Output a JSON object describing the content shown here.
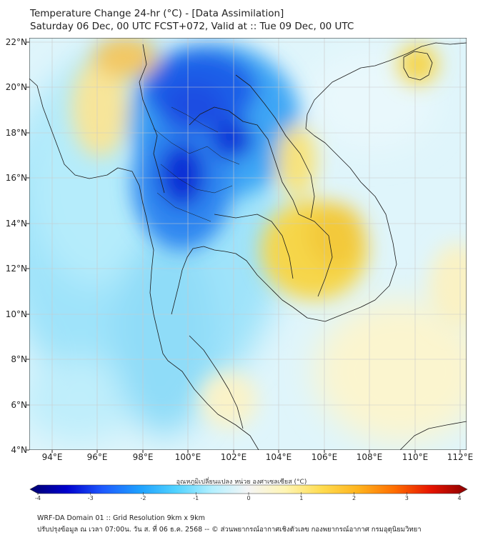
{
  "header": {
    "title_line1": "Temperature Change 24-hr (°C) - [Data Assimilation]",
    "title_line2": "Saturday 06 Dec, 00 UTC FCST+072, Valid at :: Tue 09 Dec, 00 UTC"
  },
  "map": {
    "latitude_labels": [
      "22°N",
      "20°N",
      "18°N",
      "16°N",
      "14°N",
      "12°N",
      "10°N",
      "8°N",
      "6°N",
      "4°N"
    ],
    "longitude_labels": [
      "94°E",
      "96°E",
      "98°E",
      "100°E",
      "102°E",
      "104°E",
      "106°E",
      "108°E",
      "110°E",
      "112°E"
    ],
    "lat_range": [
      4,
      22
    ],
    "lon_range": [
      93,
      112.3
    ],
    "anomaly_fields": [
      {
        "name": "northern-thailand-cold-core",
        "lon": 101.0,
        "lat": 18.8,
        "value": -2.5
      },
      {
        "name": "central-thailand-cold",
        "lon": 100.0,
        "lat": 16.2,
        "value": -2.6
      },
      {
        "name": "laos-cold",
        "lon": 102.0,
        "lat": 18.0,
        "value": -2.3
      },
      {
        "name": "cambodia-warm",
        "lon": 105.5,
        "lat": 12.8,
        "value": 1.3
      },
      {
        "name": "laos-east-warm",
        "lon": 104.8,
        "lat": 16.3,
        "value": 1.0
      },
      {
        "name": "hainan-warm",
        "lon": 110.0,
        "lat": 21.0,
        "value": 1.2
      },
      {
        "name": "myanmar-west-warm",
        "lon": 95.5,
        "lat": 19.5,
        "value": 0.9
      },
      {
        "name": "myanmar-north-warm",
        "lon": 98.0,
        "lat": 21.6,
        "value": 1.3
      }
    ]
  },
  "colorbar": {
    "label": "อุณหภูมิเปลี่ยนแปลง หน่วย องศาเซลเซียส (°C)",
    "ticks": [
      "-4",
      "-3",
      "-2",
      "-1",
      "0",
      "1",
      "2",
      "3",
      "4"
    ],
    "range": [
      -4,
      4
    ],
    "colors": [
      "#00006e",
      "#0000cd",
      "#1e5aff",
      "#1ea0ff",
      "#50d2ff",
      "#b4f0ff",
      "#f5f5f5",
      "#fff5b4",
      "#ffdc50",
      "#ffb41e",
      "#ff6e00",
      "#e61400",
      "#8c0000"
    ]
  },
  "footer": {
    "line1": "WRF-DA Domain 01 :: Grid Resolution 9km x 9km",
    "line2": "ปรับปรุงข้อมูล ณ เวลา 07:00น. วัน ส. ที่ 06 ธ.ค. 2568 -- © ส่วนพยากรณ์อากาศเชิงตัวเลข กองพยากรณ์อากาศ กรมอุตุนิยมวิทยา"
  }
}
